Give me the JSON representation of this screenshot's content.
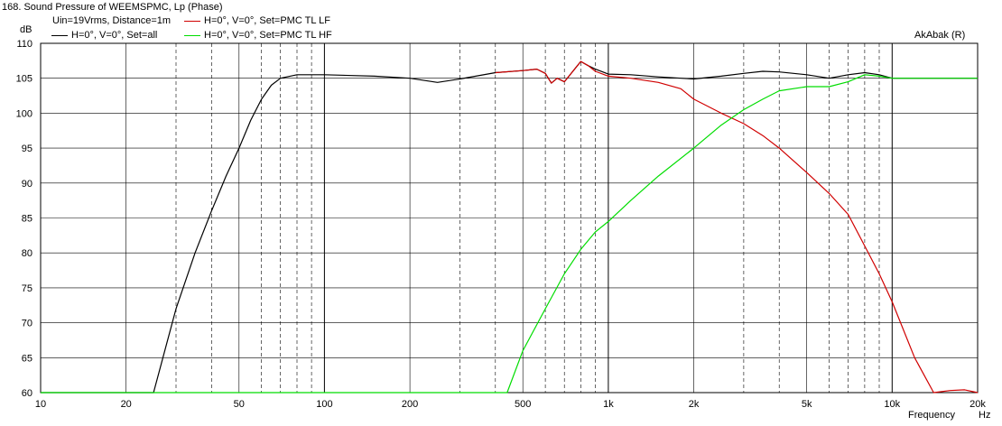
{
  "title": "168. Sound Pressure of WEEMSPMC, Lp (Phase)",
  "subtitle": "Uin=19Vrms, Distance=1m",
  "credit": "AkAbak (R)",
  "y_unit": "dB",
  "x_label": "Frequency",
  "x_unit": "Hz",
  "colors": {
    "black": "#000000",
    "red": "#d00000",
    "green": "#00dd00",
    "grid": "#000000"
  },
  "chart_data": {
    "type": "line",
    "xscale": "log",
    "xlim": [
      10,
      20000
    ],
    "ylim": [
      60,
      110
    ],
    "grid": true,
    "legend_position": "top-left",
    "x_ticks": [
      10,
      20,
      50,
      100,
      200,
      500,
      1000,
      2000,
      5000,
      10000,
      20000
    ],
    "x_tick_labels": [
      "10",
      "20",
      "50",
      "100",
      "200",
      "500",
      "1k",
      "2k",
      "5k",
      "10k",
      "20k"
    ],
    "y_ticks": [
      60,
      65,
      70,
      75,
      80,
      85,
      90,
      95,
      100,
      105,
      110
    ],
    "y_tick_labels": [
      "60",
      "65",
      "70",
      "75",
      "80",
      "85",
      "90",
      "95",
      "100",
      "105",
      "110"
    ],
    "series": [
      {
        "name": "H=0°, V=0°, Set=all",
        "color": "#000000",
        "points": [
          [
            10,
            60
          ],
          [
            25,
            60
          ],
          [
            30,
            72
          ],
          [
            35,
            80
          ],
          [
            40,
            86
          ],
          [
            45,
            91
          ],
          [
            50,
            95
          ],
          [
            55,
            99
          ],
          [
            60,
            102
          ],
          [
            65,
            104
          ],
          [
            70,
            105
          ],
          [
            80,
            105.5
          ],
          [
            100,
            105.5
          ],
          [
            150,
            105.3
          ],
          [
            200,
            105
          ],
          [
            250,
            104.4
          ],
          [
            300,
            104.9
          ],
          [
            400,
            105.8
          ],
          [
            500,
            106.1
          ],
          [
            560,
            106.3
          ],
          [
            600,
            105.7
          ],
          [
            630,
            104.3
          ],
          [
            660,
            105
          ],
          [
            700,
            104.5
          ],
          [
            750,
            106
          ],
          [
            800,
            107.4
          ],
          [
            850,
            106.8
          ],
          [
            900,
            106.3
          ],
          [
            1000,
            105.6
          ],
          [
            1200,
            105.5
          ],
          [
            1500,
            105.2
          ],
          [
            2000,
            104.9
          ],
          [
            2500,
            105.3
          ],
          [
            3000,
            105.7
          ],
          [
            3500,
            106
          ],
          [
            4000,
            105.9
          ],
          [
            5000,
            105.5
          ],
          [
            6000,
            105
          ],
          [
            7000,
            105.5
          ],
          [
            8000,
            105.8
          ],
          [
            9000,
            105.5
          ],
          [
            10000,
            105
          ],
          [
            12000,
            105
          ],
          [
            15000,
            105
          ],
          [
            20000,
            105
          ]
        ]
      },
      {
        "name": "H=0°, V=0°, Set=PMC TL LF",
        "color": "#d00000",
        "points": [
          [
            400,
            105.8
          ],
          [
            500,
            106.1
          ],
          [
            560,
            106.3
          ],
          [
            600,
            105.7
          ],
          [
            630,
            104.3
          ],
          [
            660,
            105
          ],
          [
            700,
            104.5
          ],
          [
            750,
            106
          ],
          [
            800,
            107.4
          ],
          [
            850,
            106.8
          ],
          [
            900,
            106
          ],
          [
            1000,
            105.3
          ],
          [
            1200,
            105
          ],
          [
            1500,
            104.4
          ],
          [
            1800,
            103.5
          ],
          [
            2000,
            102
          ],
          [
            2500,
            100
          ],
          [
            3000,
            98.5
          ],
          [
            3500,
            96.8
          ],
          [
            4000,
            95
          ],
          [
            5000,
            91.5
          ],
          [
            6000,
            88.5
          ],
          [
            7000,
            85.5
          ],
          [
            8000,
            81
          ],
          [
            9000,
            77
          ],
          [
            10000,
            73
          ],
          [
            12000,
            65
          ],
          [
            14000,
            60
          ],
          [
            16000,
            60.3
          ],
          [
            18000,
            60.4
          ],
          [
            20000,
            60
          ]
        ]
      },
      {
        "name": "H=0°, V=0°, Set=PMC TL HF",
        "color": "#00dd00",
        "points": [
          [
            10,
            60
          ],
          [
            440,
            60
          ],
          [
            500,
            66
          ],
          [
            600,
            72
          ],
          [
            700,
            77
          ],
          [
            800,
            80.5
          ],
          [
            900,
            83
          ],
          [
            1000,
            84.5
          ],
          [
            1200,
            87.5
          ],
          [
            1500,
            91
          ],
          [
            2000,
            95
          ],
          [
            2500,
            98.3
          ],
          [
            3000,
            100.5
          ],
          [
            3500,
            102
          ],
          [
            4000,
            103.2
          ],
          [
            5000,
            103.8
          ],
          [
            6000,
            103.8
          ],
          [
            7000,
            104.5
          ],
          [
            8000,
            105.5
          ],
          [
            9000,
            105.3
          ],
          [
            10000,
            105
          ],
          [
            12000,
            105
          ],
          [
            15000,
            105
          ],
          [
            20000,
            105
          ]
        ]
      }
    ]
  }
}
